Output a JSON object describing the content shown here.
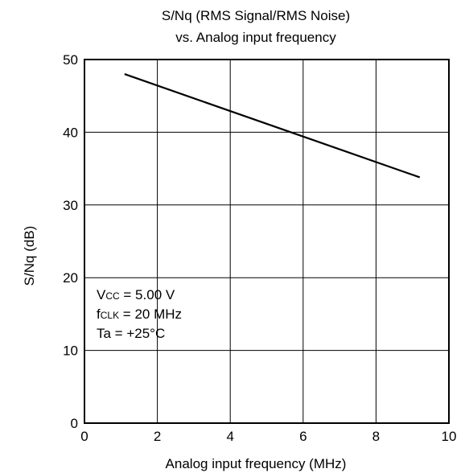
{
  "chart_data": {
    "type": "line",
    "title": "S/Nq (RMS Signal/RMS Noise)",
    "subtitle": "vs. Analog input frequency",
    "xlabel": "Analog input frequency (MHz)",
    "ylabel": "S/Nq (dB)",
    "xlim": [
      0,
      10
    ],
    "ylim": [
      0,
      50
    ],
    "xticks": [
      "0",
      "2",
      "4",
      "6",
      "8",
      "10"
    ],
    "yticks": [
      "0",
      "10",
      "20",
      "30",
      "40",
      "50"
    ],
    "grid": true,
    "x": [
      1.1,
      9.2
    ],
    "series": [
      {
        "values": [
          48.0,
          33.8
        ]
      }
    ],
    "annotations": [
      {
        "main": "V",
        "sub": "CC",
        "rest": " = 5.00 V"
      },
      {
        "main": "f",
        "sub": "CLK",
        "rest": " = 20 MHz"
      },
      {
        "main": "Ta = +25°C",
        "sub": "",
        "rest": ""
      }
    ]
  },
  "colors": {
    "line": "#000000",
    "grid": "#000000",
    "background": "#ffffff"
  }
}
